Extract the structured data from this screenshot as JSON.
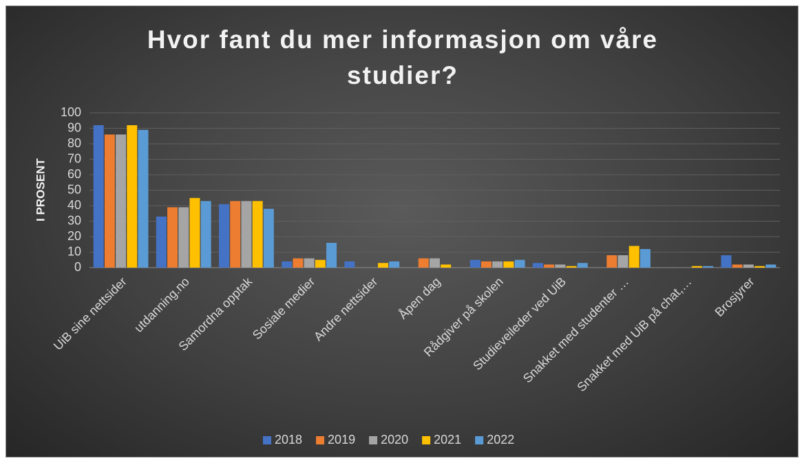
{
  "chart_data": {
    "type": "bar",
    "title": "Hvor fant du mer informasjon om våre studier?",
    "y_label": "I PROSENT",
    "categories": [
      "UiB sine nettsider",
      "utdanning.no",
      "Samordna opptak",
      "Sosiale medier",
      "Andre nettsider",
      "Åpen dag",
      "Rådgiver på skolen",
      "Studieveileder ved UiB",
      "Snakket med studenter …",
      "Snakket med UiB på chat,…",
      "Brosjyrer"
    ],
    "series": [
      {
        "name": "2018",
        "color": "#4472c4",
        "values": [
          92,
          33,
          41,
          4,
          4,
          0,
          5,
          3,
          0,
          0,
          8
        ]
      },
      {
        "name": "2019",
        "color": "#ed7d31",
        "values": [
          86,
          39,
          43,
          6,
          0,
          6,
          4,
          2,
          8,
          0,
          2
        ]
      },
      {
        "name": "2020",
        "color": "#a5a5a5",
        "values": [
          86,
          39,
          43,
          6,
          0,
          6,
          4,
          2,
          8,
          0,
          2
        ]
      },
      {
        "name": "2021",
        "color": "#ffc000",
        "values": [
          92,
          45,
          43,
          5,
          3,
          2,
          4,
          1,
          14,
          1,
          1
        ]
      },
      {
        "name": "2022",
        "color": "#5b9bd5",
        "values": [
          89,
          43,
          38,
          16,
          4,
          0,
          5,
          3,
          12,
          1,
          2
        ]
      }
    ],
    "ylim": [
      0,
      100
    ],
    "yticks": [
      0,
      10,
      20,
      30,
      40,
      50,
      60,
      70,
      80,
      90,
      100
    ],
    "grid": true,
    "legend": "bottom"
  }
}
